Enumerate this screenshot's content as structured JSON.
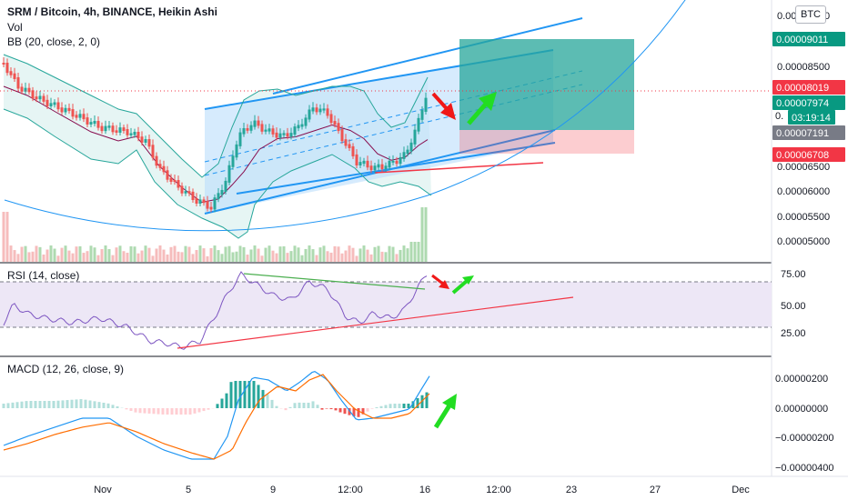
{
  "chart_data": {
    "type": "candlestick",
    "main_title": "SRM / Bitcoin, 4h, BINANCE, Heikin Ashi",
    "indicators": [
      "Vol",
      "BB (20, close, 2, 0)"
    ],
    "currency_badge": "BTC",
    "price_axis_ticks": [
      "0.00009500",
      "0.00008500",
      "0.00006500",
      "0.00006000",
      "0.00005500",
      "0.00005000"
    ],
    "price_tags": [
      {
        "label": "0.00009011",
        "color": "#089981"
      },
      {
        "label": "0.00008019",
        "color": "#f23645"
      },
      {
        "label": "0.00007974",
        "color": "#089981"
      },
      {
        "label": "03:19:14",
        "color": "#089981"
      },
      {
        "label": "0.00007191",
        "color": "#787b86"
      },
      {
        "label": "0.00006708",
        "color": "#f23645"
      }
    ],
    "price_partial_label": "0.",
    "x_axis_labels": [
      "Nov",
      "5",
      "9",
      "12:00",
      "16",
      "12:00",
      "23",
      "27",
      "Dec"
    ],
    "rsi": {
      "title": "RSI (14, close)",
      "ticks": [
        "75.00",
        "50.00",
        "25.00"
      ],
      "band": [
        30,
        70
      ]
    },
    "macd": {
      "title": "MACD (12, 26, close, 9)",
      "ticks": [
        "0.00000200",
        "0.00000000",
        "−0.00000200",
        "−0.00000400"
      ]
    },
    "colors": {
      "up": "#26a69a",
      "down": "#ef5350",
      "channel": "#2196f3",
      "bb_fill": "#e0f2f1",
      "bb_line": "#26a69a",
      "basis": "#880e4f",
      "rsi_line": "#7e57c2",
      "rsi_band": "#ede7f6",
      "macd_line": "#2196f3",
      "signal_line": "#ff6d00",
      "arrow_red": "#f01818",
      "arrow_green": "#22dd22"
    }
  }
}
